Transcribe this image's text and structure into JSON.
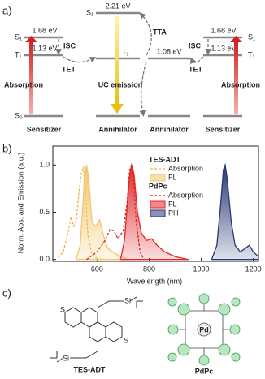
{
  "diagram": {
    "panel_label": "a)",
    "left": {
      "s1": "S₁",
      "t1": "T₁",
      "s0": "S₀",
      "s1_energy": "1.68 eV",
      "t1_energy": "1.13 eV",
      "isc": "ISC",
      "tet": "TET",
      "absorption": "Absorption",
      "name": "Sensitizer"
    },
    "center_left": {
      "s1": "S₁",
      "s1_energy": "2.21 eV",
      "t1": "T₁",
      "name": "Annihilator"
    },
    "center_right": {
      "t1_energy": "1.08 eV",
      "name": "Annihilator"
    },
    "right": {
      "s1": "S₁",
      "t1": "T₁",
      "s1_energy": "1.68 eV",
      "t1_energy": "1.13 eV",
      "isc": "ISC",
      "tet": "TET",
      "absorption": "Absorption",
      "name": "Sensitizer"
    },
    "tta": "TTA",
    "uc_emission": "UC emission"
  },
  "chart_data": {
    "type": "line",
    "panel_label": "b)",
    "x_label": "Wavelength (nm)",
    "y_label": "Norm. Abs. and Emission (a.u.)",
    "xlim": [
      430,
      1220
    ],
    "xticks": [
      600,
      800,
      1000,
      1200
    ],
    "ylim": [
      -0.02,
      1.2
    ],
    "yticks": [
      {
        "value": 0,
        "label": "0.0"
      },
      {
        "value": 0.5,
        "label": "0.5"
      },
      {
        "value": 1,
        "label": "1.0"
      }
    ],
    "series": [
      {
        "group": "TES-ADT",
        "name": "Absorption",
        "color": "#f0b040",
        "dashed": true,
        "filled": false,
        "x": [
          450,
          470,
          490,
          500,
          510,
          520,
          530,
          540,
          548,
          555,
          565,
          580,
          600,
          620
        ],
        "values": [
          0.02,
          0.08,
          0.3,
          0.45,
          0.35,
          0.4,
          0.7,
          0.92,
          0.98,
          0.7,
          0.25,
          0.05,
          0.01,
          0
        ]
      },
      {
        "group": "TES-ADT",
        "name": "FL",
        "color": "#f2c66a",
        "dashed": false,
        "filled": true,
        "x": [
          520,
          535,
          545,
          552,
          560,
          568,
          580,
          595,
          610,
          625,
          640,
          660,
          690,
          720
        ],
        "values": [
          0,
          0.15,
          0.55,
          0.9,
          1.0,
          0.85,
          0.4,
          0.35,
          0.42,
          0.25,
          0.12,
          0.08,
          0.03,
          0
        ]
      },
      {
        "group": "PdPc",
        "name": "Absorption",
        "color": "#d42020",
        "dashed": true,
        "filled": false,
        "x": [
          560,
          600,
          630,
          650,
          665,
          680,
          700,
          715,
          725,
          732,
          740,
          750,
          765,
          780
        ],
        "values": [
          0,
          0.08,
          0.2,
          0.32,
          0.3,
          0.22,
          0.3,
          0.6,
          0.95,
          1.0,
          0.85,
          0.4,
          0.08,
          0
        ]
      },
      {
        "group": "PdPc",
        "name": "FL",
        "color": "#e02828",
        "dashed": false,
        "filled": true,
        "x": [
          690,
          705,
          715,
          725,
          733,
          742,
          755,
          770,
          790,
          810,
          830,
          860,
          900,
          950
        ],
        "values": [
          0,
          0.2,
          0.55,
          0.9,
          1.0,
          0.9,
          0.5,
          0.28,
          0.2,
          0.22,
          0.15,
          0.08,
          0.03,
          0
        ]
      },
      {
        "group": "PdPc",
        "name": "PH",
        "color": "#2a3775",
        "dashed": false,
        "filled": true,
        "x": [
          1040,
          1060,
          1075,
          1085,
          1092,
          1100,
          1115,
          1130,
          1150,
          1170,
          1185,
          1200,
          1220
        ],
        "values": [
          0,
          0.15,
          0.6,
          0.95,
          1.0,
          0.85,
          0.4,
          0.15,
          0.08,
          0.12,
          0.15,
          0.08,
          0.03
        ]
      }
    ]
  },
  "structures": {
    "panel_label": "c)",
    "tes_adt": {
      "name": "TES-ADT",
      "atoms": [
        "S",
        "S",
        "Si",
        "Si"
      ]
    },
    "pdpc": {
      "name": "PdPc",
      "center": "Pd"
    }
  }
}
